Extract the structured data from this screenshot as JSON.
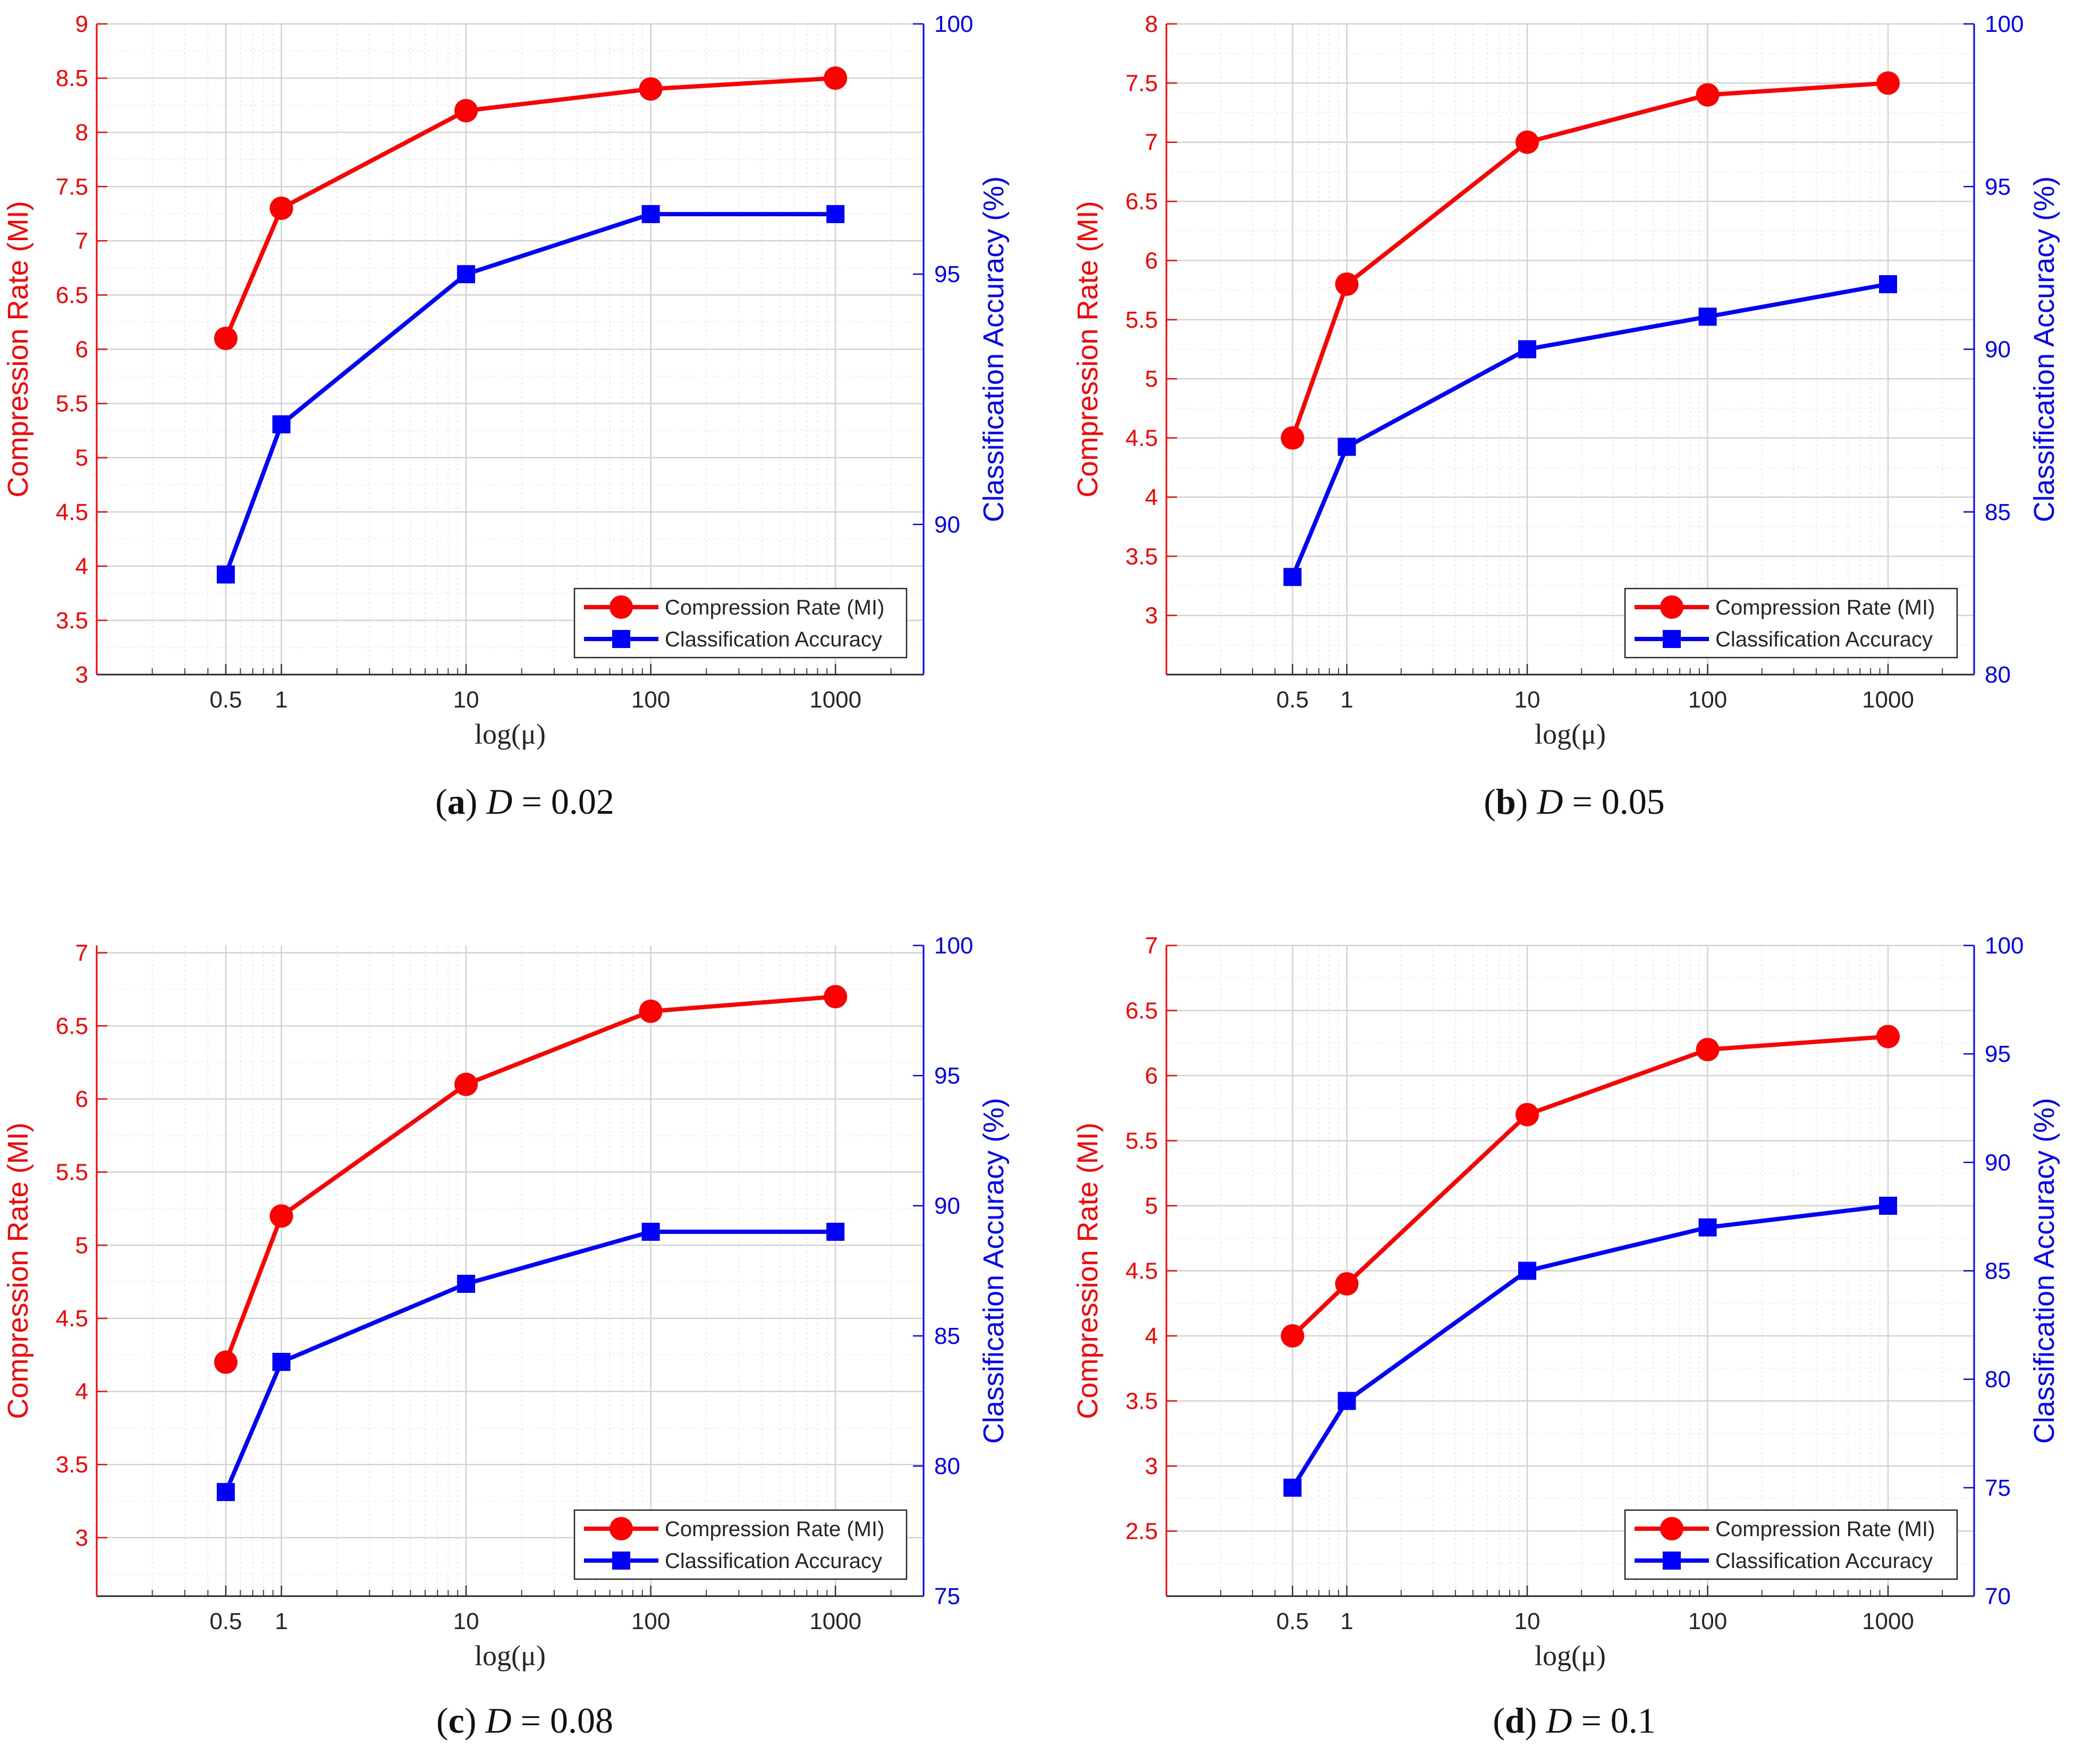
{
  "chart_data": [
    {
      "type": "line",
      "subplot": "a",
      "caption": {
        "letter": "a",
        "var": "D",
        "eq": "= 0.02"
      },
      "xscale": "log",
      "x": [
        0.5,
        1,
        10,
        100,
        1000
      ],
      "xticks": [
        "0.5",
        "1",
        "10",
        "100",
        "1000"
      ],
      "xlabel": "log(μ)",
      "xlim": [
        0.1,
        3000
      ],
      "ylabel_left": "Compression Rate (MI)",
      "ylabel_right": "Classification Accuracy (%)",
      "ylim_left": [
        3,
        9
      ],
      "yticks_left": [
        "3",
        "3.5",
        "4",
        "4.5",
        "5",
        "5.5",
        "6",
        "6.5",
        "7",
        "7.5",
        "8",
        "8.5",
        "9"
      ],
      "ylim_right": [
        87,
        100
      ],
      "yticks_right": [
        "90",
        "95",
        "100"
      ],
      "series": [
        {
          "name": "Compression Rate (MI)",
          "axis": "left",
          "color": "#ff0000",
          "marker": "circle",
          "values": [
            6.1,
            7.3,
            8.2,
            8.4,
            8.5
          ]
        },
        {
          "name": "Classification Accuracy",
          "axis": "right",
          "color": "#0000ff",
          "marker": "square",
          "values": [
            89,
            92,
            95,
            96.2,
            96.2
          ]
        }
      ],
      "legend": "bottom-right",
      "grid": true
    },
    {
      "type": "line",
      "subplot": "b",
      "caption": {
        "letter": "b",
        "var": "D",
        "eq": "= 0.05"
      },
      "xscale": "log",
      "x": [
        0.5,
        1,
        10,
        100,
        1000
      ],
      "xticks": [
        "0.5",
        "1",
        "10",
        "100",
        "1000"
      ],
      "xlabel": "log(μ)",
      "xlim": [
        0.1,
        3000
      ],
      "ylabel_left": "Compression Rate (MI)",
      "ylabel_right": "Classification Accuracy (%)",
      "ylim_left": [
        2.5,
        8
      ],
      "yticks_left": [
        "3",
        "3.5",
        "4",
        "4.5",
        "5",
        "5.5",
        "6",
        "6.5",
        "7",
        "7.5",
        "8"
      ],
      "ylim_right": [
        80,
        100
      ],
      "yticks_right": [
        "80",
        "85",
        "90",
        "95",
        "100"
      ],
      "series": [
        {
          "name": "Compression Rate (MI)",
          "axis": "left",
          "color": "#ff0000",
          "marker": "circle",
          "values": [
            4.5,
            5.8,
            7.0,
            7.4,
            7.5
          ]
        },
        {
          "name": "Classification Accuracy",
          "axis": "right",
          "color": "#0000ff",
          "marker": "square",
          "values": [
            83,
            87,
            90,
            91,
            92
          ]
        }
      ],
      "legend": "bottom-right",
      "grid": true
    },
    {
      "type": "line",
      "subplot": "c",
      "caption": {
        "letter": "c",
        "var": "D",
        "eq": "= 0.08"
      },
      "xscale": "log",
      "x": [
        0.5,
        1,
        10,
        100,
        1000
      ],
      "xticks": [
        "0.5",
        "1",
        "10",
        "100",
        "1000"
      ],
      "xlabel": "log(μ)",
      "xlim": [
        0.1,
        3000
      ],
      "ylabel_left": "Compression Rate (MI)",
      "ylabel_right": "Classification Accuracy (%)",
      "ylim_left": [
        2.6,
        7.05
      ],
      "yticks_left": [
        "3",
        "3.5",
        "4",
        "4.5",
        "5",
        "5.5",
        "6",
        "6.5",
        "7"
      ],
      "ylim_right": [
        75,
        100
      ],
      "yticks_right": [
        "75",
        "80",
        "85",
        "90",
        "95",
        "100"
      ],
      "series": [
        {
          "name": "Compression Rate (MI)",
          "axis": "left",
          "color": "#ff0000",
          "marker": "circle",
          "values": [
            4.2,
            5.2,
            6.1,
            6.6,
            6.7
          ]
        },
        {
          "name": "Classification Accuracy",
          "axis": "right",
          "color": "#0000ff",
          "marker": "square",
          "values": [
            79,
            84,
            87,
            89,
            89
          ]
        }
      ],
      "legend": "bottom-right",
      "grid": true
    },
    {
      "type": "line",
      "subplot": "d",
      "caption": {
        "letter": "d",
        "var": "D",
        "eq": "= 0.1"
      },
      "xscale": "log",
      "x": [
        0.5,
        1,
        10,
        100,
        1000
      ],
      "xticks": [
        "0.5",
        "1",
        "10",
        "100",
        "1000"
      ],
      "xlabel": "log(μ)",
      "xlim": [
        0.1,
        3000
      ],
      "ylabel_left": "Compression Rate (MI)",
      "ylabel_right": "Classification Accuracy (%)",
      "ylim_left": [
        2,
        7
      ],
      "yticks_left": [
        "2.5",
        "3",
        "3.5",
        "4",
        "4.5",
        "5",
        "5.5",
        "6",
        "6.5",
        "7"
      ],
      "ylim_right": [
        70,
        100
      ],
      "yticks_right": [
        "70",
        "75",
        "80",
        "85",
        "90",
        "95",
        "100"
      ],
      "series": [
        {
          "name": "Compression Rate (MI)",
          "axis": "left",
          "color": "#ff0000",
          "marker": "circle",
          "values": [
            4.0,
            4.4,
            5.7,
            6.2,
            6.3
          ]
        },
        {
          "name": "Classification Accuracy",
          "axis": "right",
          "color": "#0000ff",
          "marker": "square",
          "values": [
            75,
            79,
            85,
            87,
            88
          ]
        }
      ],
      "legend": "bottom-right",
      "grid": true
    }
  ]
}
